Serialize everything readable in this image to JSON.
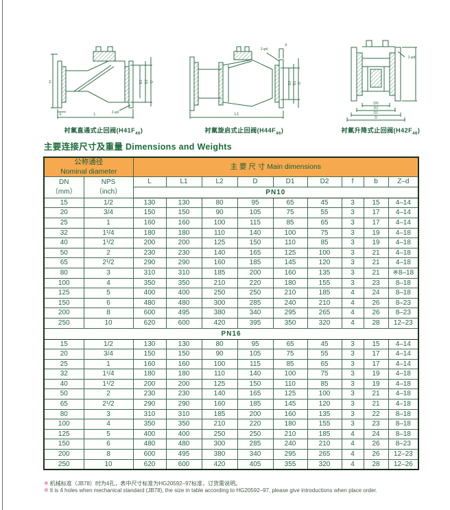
{
  "title": {
    "zh": "主要连接尺寸及重量",
    "en": "Dimensions and Weights"
  },
  "figures": [
    {
      "caption": "衬氟直通式止回阀(H41F",
      "model_subscript": "46",
      "caption_close": ")",
      "labels": {
        "H": "H",
        "L": "L",
        "D": "D",
        "D1": "D1",
        "D2": "D2",
        "b": "b",
        "bolt": "2-φd"
      }
    },
    {
      "caption": "衬氟旋启式止回阀(H44F",
      "model_subscript": "46",
      "caption_close": ")",
      "labels": {
        "L1": "L1",
        "D": "D",
        "D1": "D1",
        "D2": "D2",
        "b": "b",
        "bolt": "2-φd"
      }
    },
    {
      "caption": "衬氟升降式止回阀(H42F",
      "model_subscript": "46",
      "caption_close": ")",
      "labels": {
        "DN": "DN",
        "D2": "D2",
        "D1": "D1",
        "D": "D",
        "bolt": "2-φd"
      }
    }
  ],
  "table": {
    "group1_zh": "公称通径",
    "group1_en": "Nominal diameter",
    "group2": "主 要 尺 寸  Main  dimensions",
    "col_dn": [
      "DN",
      "（mm）"
    ],
    "col_nps": [
      "NPS",
      "（inch）"
    ],
    "dim_headers": [
      "L",
      "L1",
      "L2",
      "D",
      "D1",
      "D2",
      "f",
      "b",
      "Z–d"
    ],
    "sections": [
      {
        "label": "PN10",
        "rows": [
          [
            "15",
            "1/2",
            "130",
            "130",
            "80",
            "95",
            "65",
            "45",
            "3",
            "15",
            "4–14"
          ],
          [
            "20",
            "3/4",
            "150",
            "150",
            "90",
            "105",
            "75",
            "55",
            "3",
            "17",
            "4–14"
          ],
          [
            "25",
            "1",
            "160",
            "160",
            "100",
            "115",
            "85",
            "65",
            "3",
            "17",
            "4–14"
          ],
          [
            "32",
            "1¹/4",
            "180",
            "180",
            "110",
            "140",
            "100",
            "75",
            "3",
            "19",
            "4–18"
          ],
          [
            "40",
            "1¹/2",
            "200",
            "200",
            "125",
            "150",
            "110",
            "85",
            "3",
            "19",
            "4–18"
          ],
          [
            "50",
            "2",
            "230",
            "230",
            "140",
            "165",
            "125",
            "100",
            "3",
            "21",
            "4–18"
          ],
          [
            "65",
            "2¹/2",
            "290",
            "290",
            "160",
            "185",
            "145",
            "120",
            "3",
            "21",
            "4–18"
          ],
          [
            "80",
            "3",
            "310",
            "310",
            "185",
            "200",
            "160",
            "135",
            "3",
            "21",
            "※8–18"
          ],
          [
            "100",
            "4",
            "350",
            "350",
            "210",
            "220",
            "180",
            "155",
            "3",
            "23",
            "8–18"
          ],
          [
            "125",
            "5",
            "400",
            "400",
            "250",
            "250",
            "210",
            "185",
            "4",
            "24",
            "8–18"
          ],
          [
            "150",
            "6",
            "480",
            "480",
            "300",
            "285",
            "240",
            "210",
            "4",
            "26",
            "8–23"
          ],
          [
            "200",
            "8",
            "600",
            "495",
            "380",
            "340",
            "295",
            "265",
            "4",
            "26",
            "8–23"
          ],
          [
            "250",
            "10",
            "620",
            "600",
            "420",
            "395",
            "350",
            "320",
            "4",
            "28",
            "12–23"
          ]
        ]
      },
      {
        "label": "PN16",
        "rows": [
          [
            "15",
            "1/2",
            "130",
            "130",
            "80",
            "95",
            "65",
            "45",
            "3",
            "15",
            "4–14"
          ],
          [
            "20",
            "3/4",
            "150",
            "150",
            "90",
            "105",
            "75",
            "55",
            "3",
            "17",
            "4–14"
          ],
          [
            "25",
            "1",
            "160",
            "160",
            "100",
            "115",
            "85",
            "65",
            "3",
            "17",
            "4–14"
          ],
          [
            "32",
            "1¹/4",
            "180",
            "180",
            "110",
            "140",
            "100",
            "75",
            "3",
            "19",
            "4–18"
          ],
          [
            "40",
            "1¹/2",
            "200",
            "200",
            "125",
            "150",
            "110",
            "85",
            "3",
            "19",
            "4–18"
          ],
          [
            "50",
            "2",
            "230",
            "230",
            "140",
            "165",
            "125",
            "100",
            "3",
            "21",
            "4–18"
          ],
          [
            "65",
            "2¹/2",
            "290",
            "290",
            "160",
            "185",
            "145",
            "120",
            "3",
            "21",
            "4–18"
          ],
          [
            "80",
            "3",
            "310",
            "310",
            "185",
            "200",
            "160",
            "135",
            "3",
            "22",
            "8–18"
          ],
          [
            "100",
            "4",
            "350",
            "350",
            "210",
            "220",
            "180",
            "155",
            "3",
            "23",
            "8–18"
          ],
          [
            "125",
            "5",
            "400",
            "400",
            "250",
            "250",
            "210",
            "185",
            "4",
            "24",
            "8–18"
          ],
          [
            "150",
            "6",
            "480",
            "480",
            "300",
            "285",
            "240",
            "210",
            "4",
            "26",
            "8–23"
          ],
          [
            "200",
            "8",
            "600",
            "495",
            "380",
            "340",
            "295",
            "265",
            "4",
            "26",
            "12–23"
          ],
          [
            "250",
            "10",
            "620",
            "600",
            "420",
            "405",
            "355",
            "320",
            "4",
            "28",
            "12–26"
          ]
        ]
      }
    ]
  },
  "notes": {
    "mark": "※",
    "zh": "机械标准（JB78）时为4孔，表中尺寸标准为HG20592–97标准，订货需说明。",
    "en": "It is 4 holes when mechanical standard (JB78), the size in table according to HG20592–97, please give introductions when place order."
  },
  "colors": {
    "header_orange": "#f7a94f",
    "text_green": "#25644a",
    "title_green": "#1b6b3a",
    "note_red": "#e8446e"
  }
}
